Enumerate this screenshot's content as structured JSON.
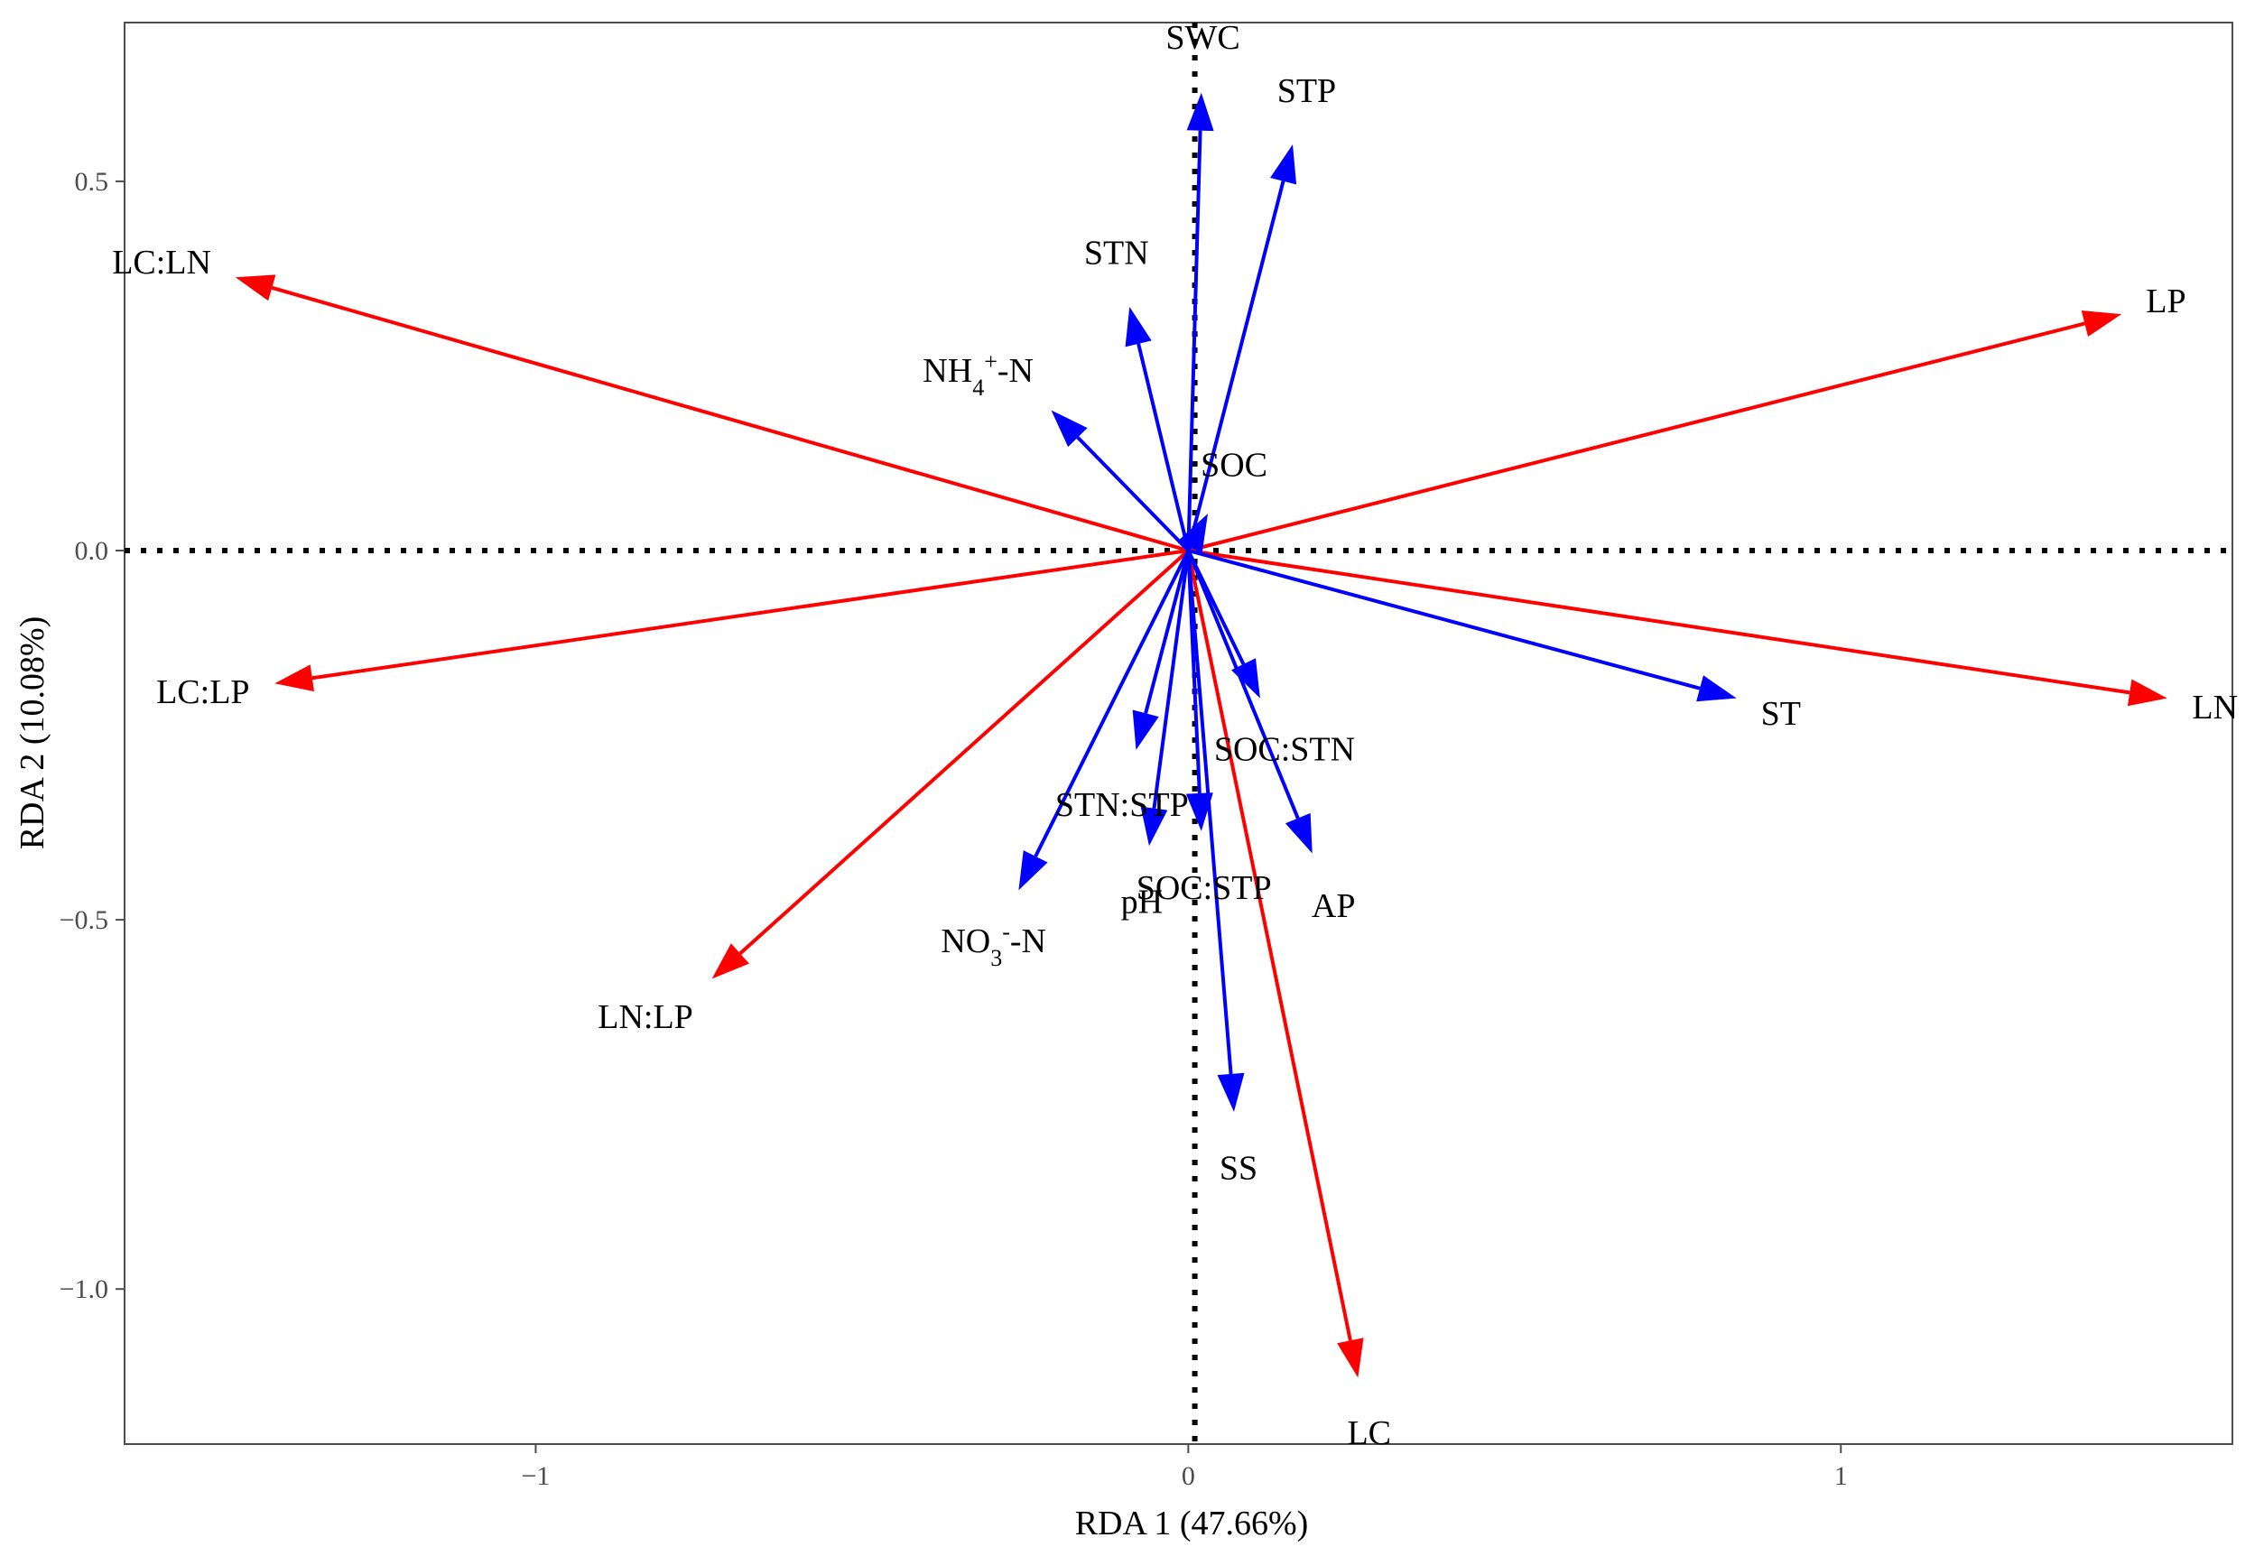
{
  "chart_data": {
    "type": "scatter",
    "subtype": "rda-biplot",
    "title": "",
    "xlabel": "RDA 1 (47.66%)",
    "ylabel": "RDA 2 (10.08%)",
    "xlim": [
      -1.63,
      1.6
    ],
    "ylim": [
      -1.21,
      0.715
    ],
    "xticks": [
      -1,
      0,
      1
    ],
    "xtick_labels": [
      "−1",
      "0",
      "1"
    ],
    "yticks": [
      0.5,
      0.0,
      -0.5,
      -1.0
    ],
    "ytick_labels": [
      "0.5",
      "0.0",
      "−0.5",
      "−1.0"
    ],
    "grid": false,
    "reference_lines": {
      "x": 0.01,
      "y": 0.0,
      "style": "dotted"
    },
    "colors": {
      "response": "#ff0000",
      "explanatory": "#0000ff",
      "frame": "#4d4d4d"
    },
    "series": [
      {
        "name": "response",
        "color": "#ff0000",
        "vectors": [
          {
            "id": "LP",
            "label": "LP",
            "x": 1.43,
            "y": 0.32
          },
          {
            "id": "LN",
            "label": "LN",
            "x": 1.5,
            "y": -0.2
          },
          {
            "id": "LC",
            "label": "LC",
            "x": 0.26,
            "y": -1.12
          },
          {
            "id": "LNLP",
            "label": "LN:LP",
            "x": -0.73,
            "y": -0.58
          },
          {
            "id": "LCLP",
            "label": "LC:LP",
            "x": -1.4,
            "y": -0.18
          },
          {
            "id": "LCLN",
            "label": "LC:LN",
            "x": -1.46,
            "y": 0.37
          }
        ]
      },
      {
        "name": "explanatory",
        "color": "#0000ff",
        "vectors": [
          {
            "id": "SWC",
            "label": "SWC",
            "x": 0.02,
            "y": 0.62
          },
          {
            "id": "STP",
            "label": "STP",
            "x": 0.16,
            "y": 0.55
          },
          {
            "id": "STN",
            "label": "STN",
            "x": -0.09,
            "y": 0.33
          },
          {
            "id": "NH4N",
            "label_main": "NH",
            "label_sub": "4",
            "label_sup": "+",
            "label_tail": "-N",
            "x": -0.21,
            "y": 0.19
          },
          {
            "id": "SOC",
            "label": "SOC",
            "x": 0.03,
            "y": 0.05
          },
          {
            "id": "SOCSTN",
            "label": "SOC:STN",
            "x": 0.11,
            "y": -0.2
          },
          {
            "id": "ST",
            "label": "ST",
            "x": 0.84,
            "y": -0.2
          },
          {
            "id": "AP",
            "label": "AP",
            "x": 0.19,
            "y": -0.41
          },
          {
            "id": "SOCSTP",
            "label": "SOC:STP",
            "x": 0.02,
            "y": -0.38
          },
          {
            "id": "STNSTP",
            "label": "STN:STP",
            "x": -0.08,
            "y": -0.27
          },
          {
            "id": "pH",
            "label": "pH",
            "x": -0.06,
            "y": -0.4
          },
          {
            "id": "NO3N",
            "label_main": "NO",
            "label_sub": "3",
            "label_sup": "-",
            "label_tail": "-N",
            "x": -0.26,
            "y": -0.46
          },
          {
            "id": "SS",
            "label": "SS",
            "x": 0.07,
            "y": -0.76
          }
        ]
      }
    ]
  }
}
